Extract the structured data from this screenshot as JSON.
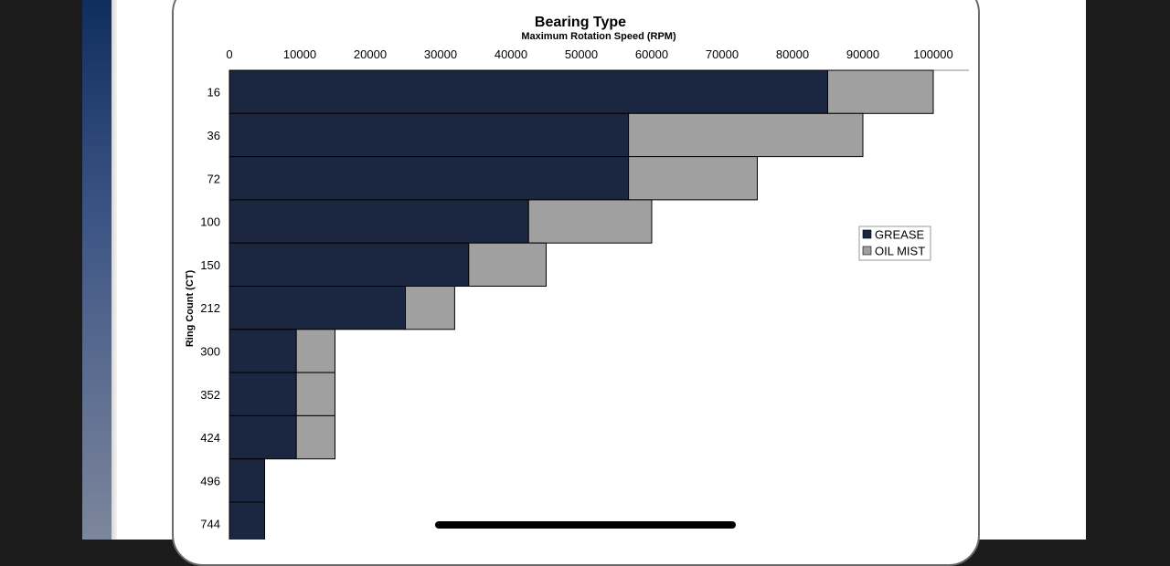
{
  "chart_data": {
    "type": "bar",
    "orientation": "horizontal",
    "stacked": true,
    "title": "Bearing Type",
    "subtitle": "",
    "xlabel": "Maximum Rotation Speed (RPM)",
    "ylabel": "Ring Count (CT)",
    "xlim": [
      0,
      100000
    ],
    "x_ticks": [
      "0",
      "10000",
      "20000",
      "30000",
      "40000",
      "50000",
      "60000",
      "70000",
      "80000",
      "90000",
      "100000"
    ],
    "categories": [
      "16",
      "36",
      "72",
      "100",
      "150",
      "212",
      "300",
      "352",
      "424",
      "496",
      "744"
    ],
    "series": [
      {
        "name": "GREASE",
        "color": "#1b2640",
        "values": [
          85000,
          56700,
          56700,
          42500,
          34000,
          25000,
          9500,
          9500,
          9500,
          5000,
          5000
        ]
      },
      {
        "name": "OIL MIST",
        "color": "#a0a0a0",
        "values": [
          15000,
          33300,
          18300,
          17500,
          11000,
          7000,
          5500,
          5500,
          5500,
          0,
          0
        ]
      }
    ],
    "legend_position": "right",
    "grid": false
  }
}
